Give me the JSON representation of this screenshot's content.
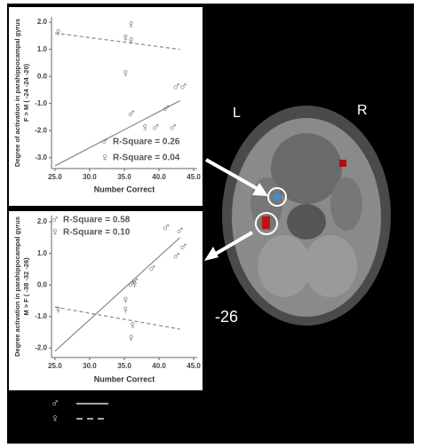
{
  "chart_data": [
    {
      "type": "scatter",
      "ylabel": "Degree of activation in parahippocampal gyrus",
      "ylabel2": "F > M ( -24 -24 -20)",
      "xlabel": "Number Correct",
      "xlim": [
        24.5,
        45.5
      ],
      "xticks": [
        {
          "value": 25,
          "label": "25.0"
        },
        {
          "value": 30,
          "label": "30.0"
        },
        {
          "value": 35,
          "label": "35.0"
        },
        {
          "value": 40,
          "label": "40.0"
        },
        {
          "value": 45,
          "label": "45.0"
        }
      ],
      "ylim": [
        -3.4,
        2.2
      ],
      "yticks": [
        {
          "value": 2,
          "label": "2.0"
        },
        {
          "value": 1,
          "label": "1.0"
        },
        {
          "value": 0,
          "label": "0.0"
        },
        {
          "value": -1,
          "label": "-1.0"
        },
        {
          "value": -2,
          "label": "-2.0"
        },
        {
          "value": -3,
          "label": "-3.0"
        }
      ],
      "series": [
        {
          "name": "♂",
          "r_square": "R-Square = 0.26",
          "color": "#666666",
          "line": "solid",
          "x": [
            36,
            39.5,
            41,
            42,
            42.5,
            43.5
          ],
          "values": [
            -1.4,
            -1.9,
            -1.2,
            -1.9,
            -0.4,
            -0.4
          ],
          "fit": {
            "x": [
              25,
              43
            ],
            "y": [
              -3.3,
              -0.9
            ]
          }
        },
        {
          "name": "♀",
          "r_square": "R-Square = 0.04",
          "color": "#666666",
          "line": "dashed",
          "x": [
            25.5,
            35.2,
            36,
            36,
            35.2,
            38
          ],
          "values": [
            1.6,
            1.4,
            1.9,
            1.3,
            0.1,
            -1.9
          ],
          "fit": {
            "x": [
              25,
              43
            ],
            "y": [
              1.6,
              1.0
            ]
          }
        }
      ]
    },
    {
      "type": "scatter",
      "ylabel": "Degree activation in parahippocampal gyrus",
      "ylabel2": "M > F ( -38 -32 -26)",
      "xlabel": "Number Correct",
      "xlim": [
        24.5,
        45.5
      ],
      "xticks": [
        {
          "value": 25,
          "label": "25.0"
        },
        {
          "value": 30,
          "label": "30.0"
        },
        {
          "value": 35,
          "label": "35.0"
        },
        {
          "value": 40,
          "label": "40.0"
        },
        {
          "value": 45,
          "label": "45.0"
        }
      ],
      "ylim": [
        -2.3,
        2.2
      ],
      "yticks": [
        {
          "value": 2,
          "label": "2.0"
        },
        {
          "value": 1,
          "label": "1.0"
        },
        {
          "value": 0,
          "label": "0.0"
        },
        {
          "value": -1,
          "label": "-1.0"
        },
        {
          "value": -2,
          "label": "-2.0"
        }
      ],
      "series": [
        {
          "name": "♂",
          "r_square": "R-Square = 0.58",
          "color": "#666666",
          "line": "solid",
          "x": [
            41,
            43,
            43.5,
            42.5,
            39,
            36,
            36.5
          ],
          "values": [
            1.8,
            1.7,
            1.2,
            0.9,
            0.5,
            0.0,
            0.1
          ],
          "fit": {
            "x": [
              25,
              43
            ],
            "y": [
              -2.1,
              1.5
            ]
          }
        },
        {
          "name": "♀",
          "r_square": "R-Square = 0.10",
          "color": "#666666",
          "line": "dashed",
          "x": [
            25.5,
            35.2,
            35.2,
            36.2,
            36,
            36.5
          ],
          "values": [
            -0.8,
            -0.5,
            -0.8,
            -1.3,
            -1.7,
            0.0
          ],
          "fit": {
            "x": [
              25,
              43
            ],
            "y": [
              -0.7,
              -1.4
            ]
          }
        }
      ]
    }
  ],
  "image_labels": {
    "left": "L",
    "right": "R",
    "slice": "-26"
  },
  "legend": [
    {
      "symbol": "♂",
      "line": "solid"
    },
    {
      "symbol": "♀",
      "line": "dashed"
    }
  ]
}
